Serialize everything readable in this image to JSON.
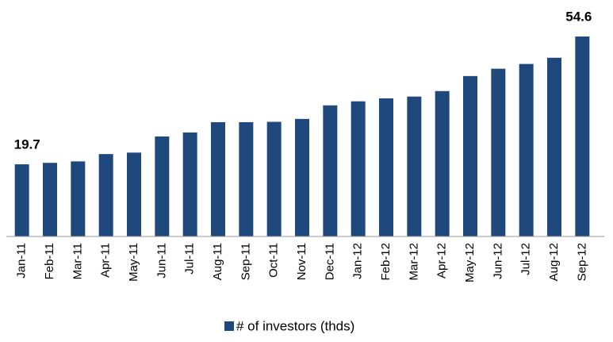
{
  "chart_data": {
    "type": "bar",
    "categories": [
      "Jan-11",
      "Feb-11",
      "Mar-11",
      "Apr-11",
      "May-11",
      "Jun-11",
      "Jul-11",
      "Aug-11",
      "Sep-11",
      "Oct-11",
      "Nov-11",
      "Dec-11",
      "Jan-12",
      "Feb-12",
      "Mar-12",
      "Apr-12",
      "May-12",
      "Jun-12",
      "Jul-12",
      "Aug-12",
      "Sep-12"
    ],
    "series": [
      {
        "name": "# of investors (thds)",
        "color": "#1f497d",
        "values": [
          19.7,
          20.1,
          20.5,
          22.5,
          22.9,
          27.3,
          28.4,
          31.2,
          31.2,
          31.3,
          32.1,
          35.8,
          36.9,
          37.7,
          38.2,
          39.7,
          43.8,
          45.8,
          47.1,
          48.8,
          54.6
        ]
      }
    ],
    "data_labels": "ends",
    "legend": "bottom"
  }
}
